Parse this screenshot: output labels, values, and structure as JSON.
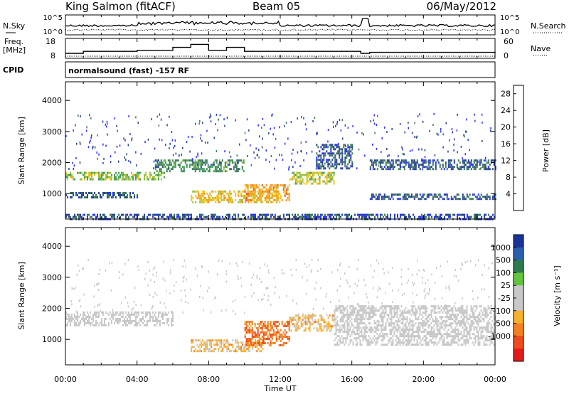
{
  "header": {
    "station": "King Salmon (fitACF)",
    "beam": "Beam 05",
    "date": "06/May/2012"
  },
  "side_labels": {
    "nsky": "N.Sky",
    "nsearch": "N.Search",
    "freq": "Freq.",
    "freq_unit": "[MHz]",
    "nave": "Nave",
    "cpid": "CPID"
  },
  "cpid_text": "normalsound (fast) -157 RF",
  "colors": {
    "power": [
      "#2b33ff",
      "#27438f",
      "#3f7a5a",
      "#43a05a",
      "#9bc23c",
      "#f3c21a",
      "#f7931e",
      "#f0591d",
      "#e31a1c"
    ],
    "velocity": [
      "#1a3399",
      "#2a5fb0",
      "#2e7a4e",
      "#62c43f",
      "#c8c8c8",
      "#c8c8c8",
      "#f7b02d",
      "#f48020",
      "#ee4b1c",
      "#e31a1c"
    ]
  },
  "chart_data": [
    {
      "type": "line",
      "panel": "noise",
      "series": [
        {
          "name": "N.Sky",
          "style": "solid"
        },
        {
          "name": "N.Search",
          "style": "dotted"
        }
      ],
      "y_tick_labels": [
        "10^0",
        "10^5"
      ],
      "y_scale": "log",
      "ylim": [
        1,
        100000
      ]
    },
    {
      "type": "line",
      "panel": "frequency-nave",
      "series": [
        {
          "name": "Freq.",
          "style": "solid",
          "x": [
            "00:00",
            "01:00",
            "04:00",
            "06:00",
            "07:00",
            "08:00",
            "09:00",
            "10:00",
            "16:30",
            "17:00",
            "24:00"
          ],
          "values": [
            10.5,
            11.5,
            12,
            13.5,
            15,
            12,
            13.5,
            11.5,
            10.5,
            11,
            10.5
          ]
        },
        {
          "name": "Nave",
          "style": "dotted"
        }
      ],
      "y_tick_labels_left": [
        "8",
        "18"
      ],
      "y_tick_labels_right": [
        "0",
        "60"
      ],
      "ylim": [
        8,
        18
      ],
      "y2lim": [
        0,
        60
      ]
    },
    {
      "type": "heatmap",
      "panel": "power",
      "xlabel": "",
      "ylabel": "Slant Range [km]",
      "x_ticks": [
        "00:00",
        "04:00",
        "08:00",
        "12:00",
        "16:00",
        "20:00",
        "00:00"
      ],
      "xlim_hours": [
        0,
        24
      ],
      "y_ticks": [
        1000,
        2000,
        3000,
        4000
      ],
      "ylim": [
        180,
        4600
      ],
      "colorbar": {
        "label": "Power [dB]",
        "ticks": [
          4,
          8,
          12,
          16,
          20,
          24,
          28
        ],
        "range": [
          0,
          30
        ]
      },
      "features": [
        {
          "t_start": 0.0,
          "t_end": 5.5,
          "range_km": [
            1450,
            1700
          ],
          "typical_db": 14
        },
        {
          "t_start": 0.0,
          "t_end": 4.0,
          "range_km": [
            900,
            1050
          ],
          "typical_db": 6
        },
        {
          "t_start": 5.0,
          "t_end": 10.0,
          "range_km": [
            1700,
            2100
          ],
          "typical_db": 10
        },
        {
          "t_start": 7.0,
          "t_end": 12.0,
          "range_km": [
            700,
            1100
          ],
          "typical_db": 18
        },
        {
          "t_start": 10.0,
          "t_end": 12.5,
          "range_km": [
            800,
            1300
          ],
          "typical_db": 20
        },
        {
          "t_start": 12.5,
          "t_end": 15.0,
          "range_km": [
            1300,
            1700
          ],
          "typical_db": 16
        },
        {
          "t_start": 14.0,
          "t_end": 16.0,
          "range_km": [
            1800,
            2600
          ],
          "typical_db": 6
        },
        {
          "t_start": 17.0,
          "t_end": 24.0,
          "range_km": [
            1800,
            2100
          ],
          "typical_db": 6
        },
        {
          "t_start": 17.0,
          "t_end": 24.0,
          "range_km": [
            800,
            1000
          ],
          "typical_db": 6
        },
        {
          "t_start": 0.0,
          "t_end": 24.0,
          "range_km": [
            180,
            350
          ],
          "typical_db": 5
        }
      ]
    },
    {
      "type": "heatmap",
      "panel": "velocity",
      "xlabel": "Time UT",
      "ylabel": "Slant Range [km]",
      "x_ticks": [
        "00:00",
        "04:00",
        "08:00",
        "12:00",
        "16:00",
        "20:00",
        "00:00"
      ],
      "xlim_hours": [
        0,
        24
      ],
      "y_ticks": [
        1000,
        2000,
        3000,
        4000
      ],
      "ylim": [
        180,
        4600
      ],
      "colorbar": {
        "label": "Velocity [m s⁻¹]",
        "ticks": [
          "1000",
          "500",
          "100",
          "25",
          "-25",
          "-100",
          "-500",
          "-1000"
        ],
        "range": [
          -1000,
          1000
        ]
      },
      "features": [
        {
          "t_start": 0.0,
          "t_end": 6.0,
          "range_km": [
            1450,
            1900
          ],
          "typical_velocity": 0
        },
        {
          "t_start": 7.0,
          "t_end": 11.0,
          "range_km": [
            600,
            1000
          ],
          "typical_velocity": -300
        },
        {
          "t_start": 10.0,
          "t_end": 12.5,
          "range_km": [
            800,
            1600
          ],
          "typical_velocity": -600
        },
        {
          "t_start": 12.5,
          "t_end": 15.0,
          "range_km": [
            1300,
            1800
          ],
          "typical_velocity": -300
        },
        {
          "t_start": 15.0,
          "t_end": 24.0,
          "range_km": [
            800,
            2100
          ],
          "typical_velocity": 0
        }
      ]
    }
  ]
}
